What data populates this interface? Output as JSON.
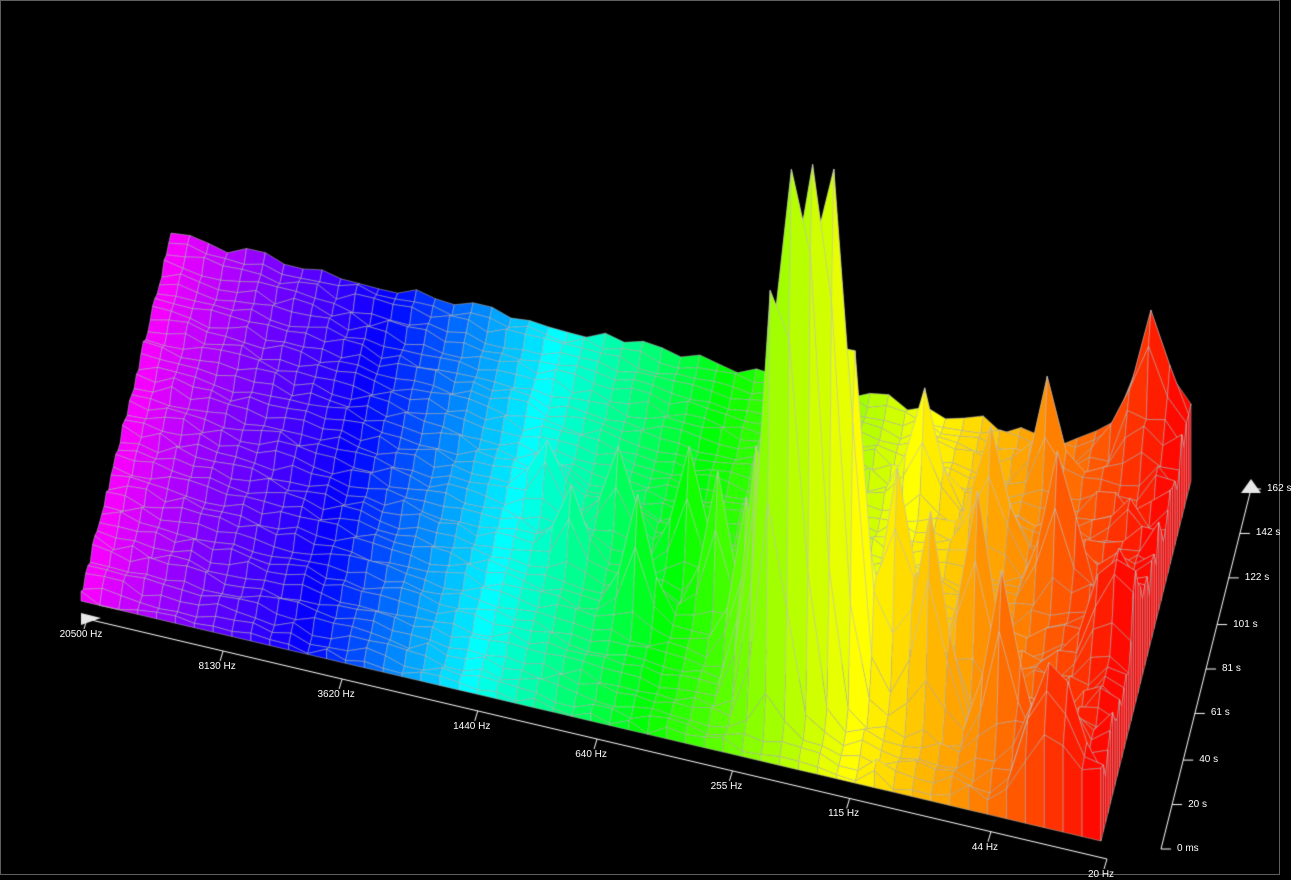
{
  "chart": {
    "type": "3d-waterfall-spectrum",
    "background_color": "#000000",
    "border_color": "#606060",
    "wireframe_color": "#c0c0c0",
    "axis_color": "#ffffff",
    "label_color": "#ffffff",
    "label_fontsize": 10,
    "arrow_marker_color": "#e8e8e8",
    "grid_cells_freq": 55,
    "grid_cells_time": 40,
    "freq_axis": {
      "unit": "Hz",
      "scale": "log",
      "min": 20,
      "max": 20500,
      "ticks": [
        20,
        44,
        115,
        255,
        640,
        1440,
        3620,
        8130,
        20500
      ],
      "labels": [
        "20 Hz",
        "44 Hz",
        "115 Hz",
        "255 Hz",
        "640 Hz",
        "1440 Hz",
        "3620 Hz",
        "8130 Hz",
        "20500 Hz"
      ]
    },
    "time_axis": {
      "unit": "s",
      "min": 0,
      "max": 162,
      "ticks": [
        0,
        20,
        40,
        61,
        81,
        101,
        122,
        142,
        162
      ],
      "labels": [
        "0 ms",
        "20 s",
        "40 s",
        "61 s",
        "81 s",
        "101 s",
        "122 s",
        "142 s",
        "162 s"
      ]
    },
    "amplitude_axis": {
      "min": 0,
      "max": 1.0
    },
    "color_map": {
      "type": "rainbow_by_frequency",
      "stops": [
        {
          "freq_norm": 0.0,
          "color": "#ff0000"
        },
        {
          "freq_norm": 0.12,
          "color": "#ff7f00"
        },
        {
          "freq_norm": 0.25,
          "color": "#ffff00"
        },
        {
          "freq_norm": 0.45,
          "color": "#00ff00"
        },
        {
          "freq_norm": 0.62,
          "color": "#00ffff"
        },
        {
          "freq_norm": 0.78,
          "color": "#0000ff"
        },
        {
          "freq_norm": 0.9,
          "color": "#8000ff"
        },
        {
          "freq_norm": 1.0,
          "color": "#ff00ff"
        }
      ]
    },
    "projection": {
      "type": "isometric-like",
      "origin_screen": [
        1100,
        840
      ],
      "freq_vec": [
        -1020,
        -240
      ],
      "time_vec": [
        90,
        -360
      ],
      "amp_vec": [
        0,
        -550
      ]
    },
    "peaks": [
      {
        "freq_idx": 16,
        "time_idx": 6,
        "height": 0.95,
        "width": 1.0
      },
      {
        "freq_idx": 17,
        "time_idx": 5,
        "height": 0.78,
        "width": 1.0
      },
      {
        "freq_idx": 15,
        "time_idx": 7,
        "height": 0.72,
        "width": 1.0
      },
      {
        "freq_idx": 18,
        "time_idx": 4,
        "height": 0.62,
        "width": 1.0
      },
      {
        "freq_idx": 14,
        "time_idx": 8,
        "height": 0.5,
        "width": 1.0
      },
      {
        "freq_idx": 19,
        "time_idx": 6,
        "height": 0.42,
        "width": 1.0
      },
      {
        "freq_idx": 12,
        "time_idx": 10,
        "height": 0.4,
        "width": 1.2
      },
      {
        "freq_idx": 10,
        "time_idx": 8,
        "height": 0.36,
        "width": 1.2
      },
      {
        "freq_idx": 8,
        "time_idx": 12,
        "height": 0.34,
        "width": 1.2
      },
      {
        "freq_idx": 6,
        "time_idx": 6,
        "height": 0.3,
        "width": 1.2
      },
      {
        "freq_idx": 20,
        "time_idx": 10,
        "height": 0.28,
        "width": 1.0
      },
      {
        "freq_idx": 22,
        "time_idx": 14,
        "height": 0.25,
        "width": 1.0
      },
      {
        "freq_idx": 24,
        "time_idx": 18,
        "height": 0.22,
        "width": 1.0
      },
      {
        "freq_idx": 26,
        "time_idx": 12,
        "height": 0.2,
        "width": 1.0
      },
      {
        "freq_idx": 28,
        "time_idx": 20,
        "height": 0.15,
        "width": 1.0
      },
      {
        "freq_idx": 5,
        "time_idx": 22,
        "height": 0.25,
        "width": 1.2
      },
      {
        "freq_idx": 9,
        "time_idx": 26,
        "height": 0.22,
        "width": 1.2
      },
      {
        "freq_idx": 13,
        "time_idx": 30,
        "height": 0.2,
        "width": 1.0
      },
      {
        "freq_idx": 7,
        "time_idx": 34,
        "height": 0.18,
        "width": 1.0
      },
      {
        "freq_idx": 30,
        "time_idx": 16,
        "height": 0.12,
        "width": 1.0
      },
      {
        "freq_idx": 32,
        "time_idx": 22,
        "height": 0.1,
        "width": 1.0
      },
      {
        "freq_idx": 2,
        "time_idx": 38,
        "height": 0.2,
        "width": 1.5
      },
      {
        "freq_idx": 3,
        "time_idx": 2,
        "height": 0.22,
        "width": 1.5
      },
      {
        "freq_idx": 1,
        "time_idx": 15,
        "height": 0.18,
        "width": 1.5
      }
    ],
    "base_noise": 0.02,
    "low_freq_ridge": 0.12
  }
}
